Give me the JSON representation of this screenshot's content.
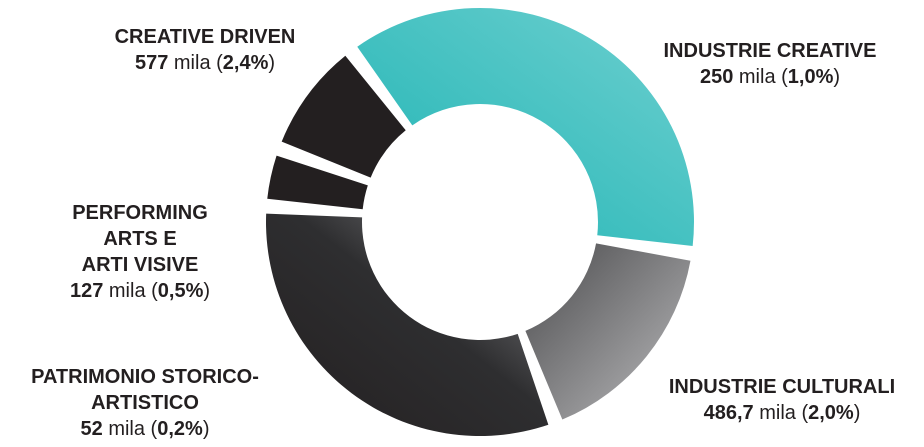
{
  "chart_data": {
    "type": "pie",
    "title": "",
    "slices": [
      {
        "name_lines": [
          "CREATIVE DRIVEN"
        ],
        "value": 577,
        "value_label": "577",
        "unit": "mila",
        "pct_label": "2,4%",
        "color": "#4fc4c4"
      },
      {
        "name_lines": [
          "INDUSTRIE CREATIVE"
        ],
        "value": 250,
        "value_label": "250",
        "unit": "mila",
        "pct_label": "1,0%",
        "color": "#8a8a8d"
      },
      {
        "name_lines": [
          "INDUSTRIE CULTURALI"
        ],
        "value": 486.7,
        "value_label": "486,7",
        "unit": "mila",
        "pct_label": "2,0%",
        "color": "#2b2b2d"
      },
      {
        "name_lines": [
          "PATRIMONIO STORICO-",
          "ARTISTICO"
        ],
        "value": 52,
        "value_label": "52",
        "unit": "mila",
        "pct_label": "0,2%",
        "color": "#231f20"
      },
      {
        "name_lines": [
          "PERFORMING",
          "ARTS E",
          "ARTI VISIVE"
        ],
        "value": 127,
        "value_label": "127",
        "unit": "mila",
        "pct_label": "0,5%",
        "color": "#231f20"
      }
    ],
    "legend": "none"
  }
}
